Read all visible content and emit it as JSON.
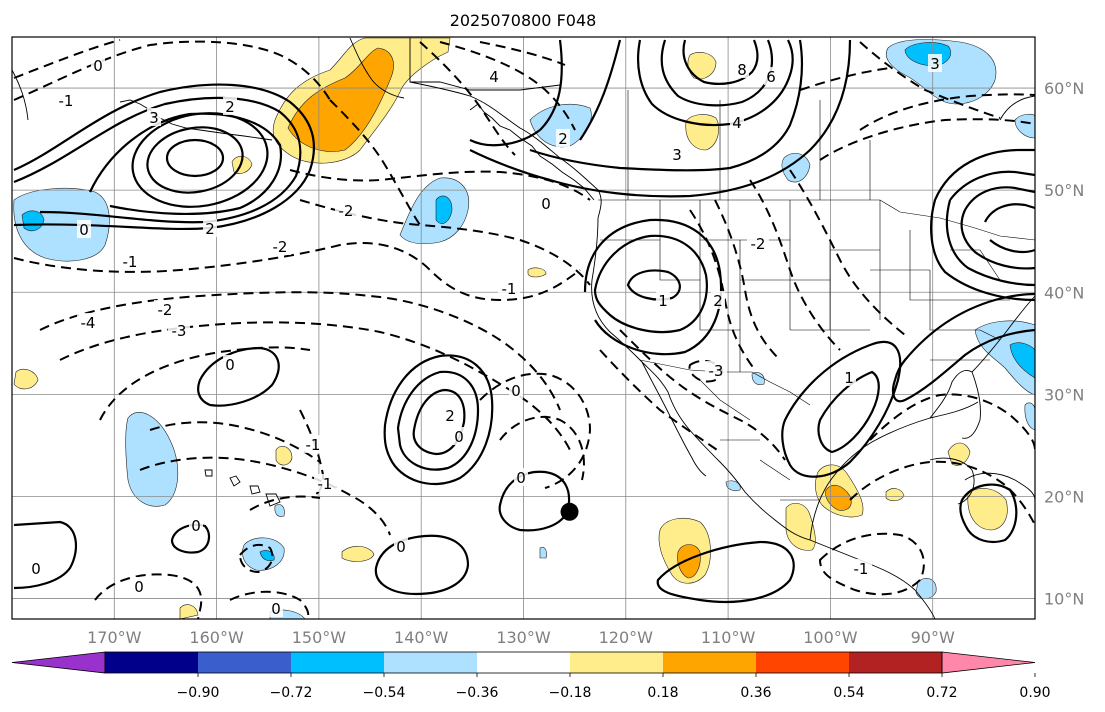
{
  "title": "2025070800 F048",
  "map": {
    "lon_range": [
      -180,
      -80
    ],
    "lat_range": [
      8,
      65
    ],
    "grid_lon": [
      -170,
      -160,
      -150,
      -140,
      -130,
      -120,
      -110,
      -100,
      -90
    ],
    "grid_lat": [
      10,
      20,
      30,
      40,
      50,
      60
    ],
    "lon_labels": [
      "170°W",
      "160°W",
      "150°W",
      "140°W",
      "130°W",
      "120°W",
      "110°W",
      "100°W",
      "90°W"
    ],
    "lat_labels": [
      "10°N",
      "20°N",
      "30°N",
      "40°N",
      "50°N",
      "60°N"
    ],
    "marker": {
      "lon": -125.5,
      "lat": 18.5
    }
  },
  "colorbar": {
    "colors": [
      "#9932cc",
      "#00008b",
      "#3a5fcd",
      "#00bfff",
      "#aee1ff",
      "#ffffff",
      "#ffec8b",
      "#ffa500",
      "#ff4500",
      "#b22222",
      "#ff88aa"
    ],
    "ticks": [
      "−0.90",
      "−0.72",
      "−0.54",
      "−0.36",
      "−0.18",
      "0.18",
      "0.36",
      "0.54",
      "0.72",
      "0.90"
    ]
  },
  "contour_labels": [
    "0",
    "4",
    "-1",
    "3",
    "2",
    "8",
    "6",
    "4",
    "3",
    "2",
    "3",
    "0",
    "0",
    "-1",
    "2",
    "-2",
    "-2",
    "-3",
    "-4",
    "0",
    "-2",
    "2",
    "0",
    "-1",
    "1",
    "2",
    "0",
    "0",
    "-1",
    "-3",
    "0",
    "-1",
    "0",
    "0",
    "0",
    "0",
    "-1",
    "-2",
    "1"
  ]
}
